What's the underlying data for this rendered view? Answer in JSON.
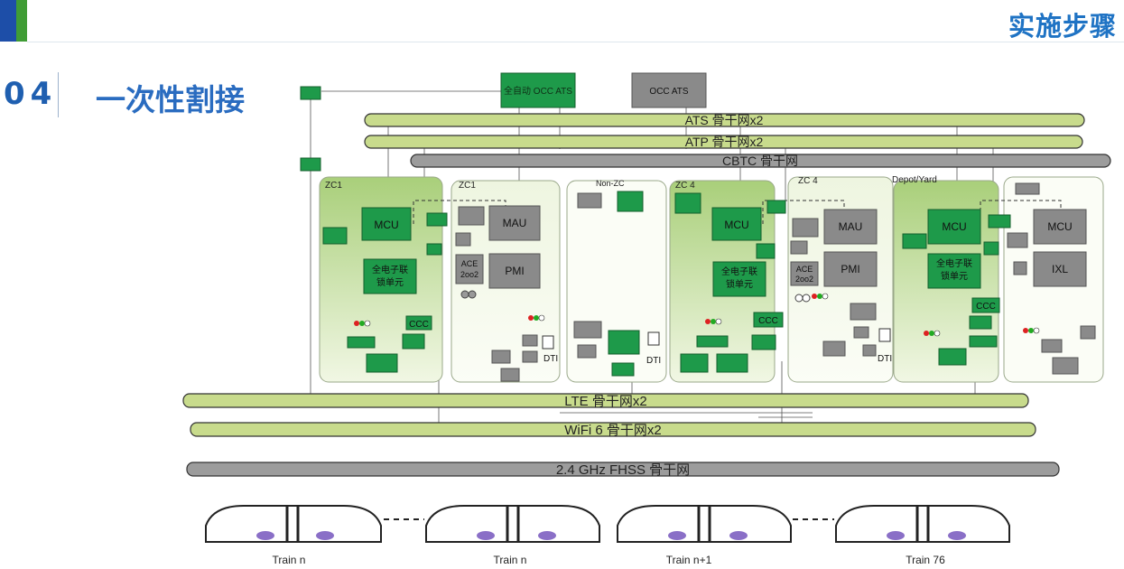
{
  "header": {
    "title": "实施步骤"
  },
  "section": {
    "number": "04",
    "title": "一次性割接"
  },
  "diagram": {
    "top_boxes": {
      "green": "全自动 OCC ATS",
      "grey": "OCC ATS"
    },
    "networks": {
      "ats": "ATS 骨干网x2",
      "atp": "ATP 骨干网x2",
      "cbtc": "CBTC 骨干网",
      "lte": "LTE 骨干网x2",
      "wifi": "WiFi 6 骨干网x2",
      "fhss": "2.4 GHz FHSS 骨干网"
    },
    "zones": {
      "zc1_green": "ZC1",
      "zc1_white": "ZC1",
      "nonzc": "Non-ZC",
      "zc4_green": "ZC 4",
      "zc4_white": "ZC 4",
      "depot": "Depot/Yard"
    },
    "labels": {
      "mcu": "MCU",
      "mau": "MAU",
      "pmi": "PMI",
      "ixl": "IXL",
      "ccc": "CCC",
      "dti": "DTI",
      "ace": "ACE",
      "ace2": "2oo2",
      "ci": "全电子联",
      "ci2": "锁单元"
    },
    "trains": [
      "Train n",
      "Train n",
      "Train n+1",
      "Train 76"
    ]
  }
}
